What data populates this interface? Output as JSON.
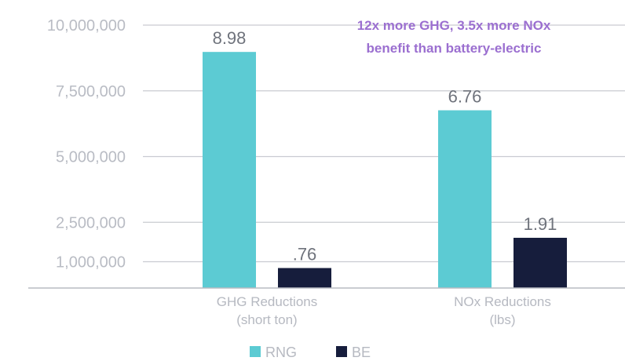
{
  "chart_data": {
    "type": "bar",
    "title": "",
    "xlabel": "",
    "ylabel": "",
    "ylim": [
      0,
      10000000
    ],
    "grid": true,
    "legend_position": "bottom-center",
    "y_ticks": [
      {
        "value": 10000000,
        "label": "10,000,000"
      },
      {
        "value": 7500000,
        "label": "7,500,000"
      },
      {
        "value": 5000000,
        "label": "5,000,000"
      },
      {
        "value": 2500000,
        "label": "2,500,000"
      },
      {
        "value": 1000000,
        "label": "1,000,000"
      }
    ],
    "categories": [
      {
        "line1": "GHG Reductions",
        "line2": "(short ton)"
      },
      {
        "line1": "NOx Reductions",
        "line2": "(lbs)"
      }
    ],
    "series": [
      {
        "name": "RNG",
        "color": "#5ccbd3",
        "values": [
          8980000,
          6760000
        ],
        "labels": [
          "8.98",
          "6.76"
        ]
      },
      {
        "name": "BE",
        "color": "#161d3c",
        "values": [
          760000,
          1910000
        ],
        "labels": ".76|1.91"
      }
    ],
    "annotation": {
      "line1": "12x more GHG, 3.5x more NOx",
      "line2": "benefit than battery-electric"
    }
  }
}
